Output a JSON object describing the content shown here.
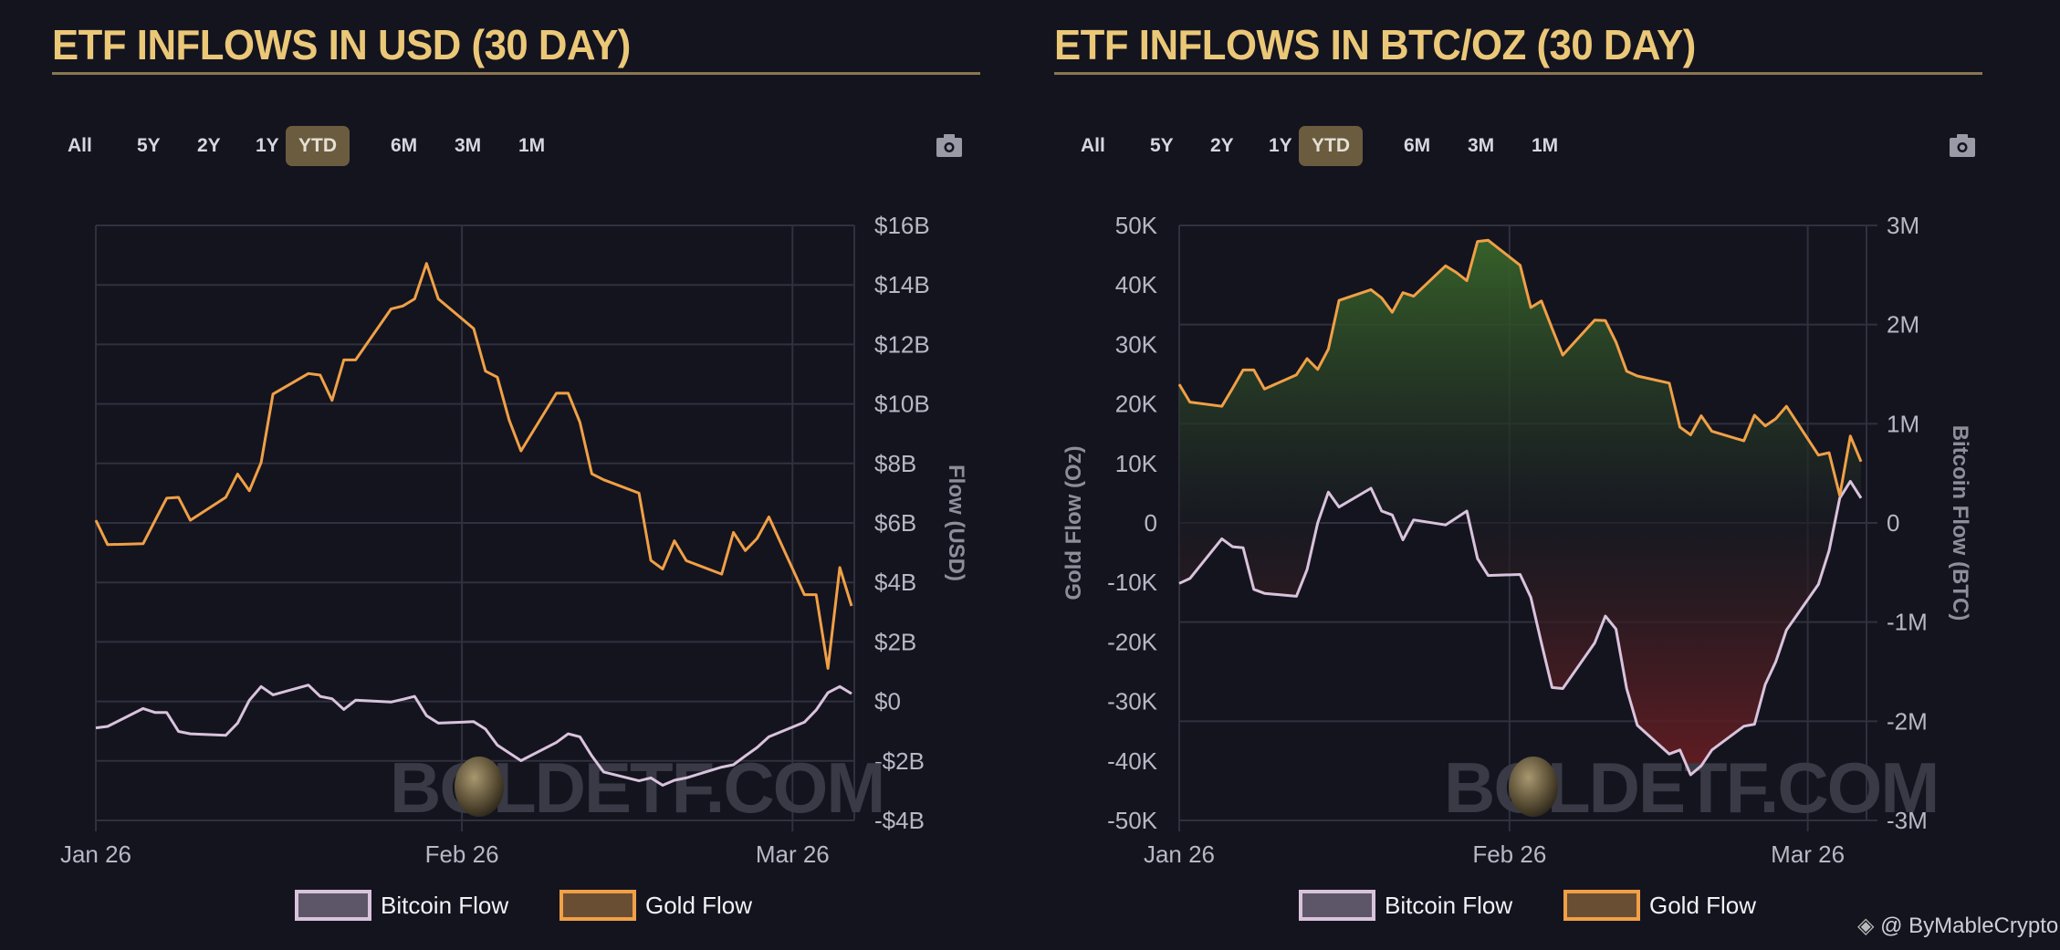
{
  "panels": [
    {
      "title": "ETF INFLOWS IN USD (30 DAY)",
      "range_buttons": [
        "All",
        "5Y",
        "2Y",
        "1Y",
        "YTD",
        "6M",
        "3M",
        "1M"
      ],
      "active_range": "YTD",
      "camera_icon": "camera-icon"
    },
    {
      "title": "ETF INFLOWS IN BTC/OZ (30 DAY)",
      "range_buttons": [
        "All",
        "5Y",
        "2Y",
        "1Y",
        "YTD",
        "6M",
        "3M",
        "1M"
      ],
      "active_range": "YTD",
      "camera_icon": "camera-icon"
    }
  ],
  "credit": {
    "icon": "binance-diamond-icon",
    "text": "@ ByMableCrypto"
  },
  "watermark": "BOLDETF.COM",
  "colors": {
    "bitcoin": "#d9c3dc",
    "gold": "#f0a046",
    "positive_fill": "#3a6a2a",
    "negative_fill": "#6a1e22"
  },
  "chart_data": [
    {
      "type": "line",
      "x": [
        "2026-01-01",
        "2026-01-02",
        "2026-01-05",
        "2026-01-06",
        "2026-01-07",
        "2026-01-08",
        "2026-01-09",
        "2026-01-12",
        "2026-01-13",
        "2026-01-14",
        "2026-01-15",
        "2026-01-16",
        "2026-01-19",
        "2026-01-20",
        "2026-01-21",
        "2026-01-22",
        "2026-01-23",
        "2026-01-26",
        "2026-01-27",
        "2026-01-28",
        "2026-01-29",
        "2026-01-30",
        "2026-02-02",
        "2026-02-03",
        "2026-02-04",
        "2026-02-05",
        "2026-02-06",
        "2026-02-09",
        "2026-02-10",
        "2026-02-11",
        "2026-02-12",
        "2026-02-13",
        "2026-02-16",
        "2026-02-17",
        "2026-02-18",
        "2026-02-19",
        "2026-02-20",
        "2026-02-23",
        "2026-02-24",
        "2026-02-25",
        "2026-02-26",
        "2026-02-27",
        "2026-03-02",
        "2026-03-03",
        "2026-03-04",
        "2026-03-05",
        "2026-03-06"
      ],
      "series": [
        {
          "name": "Bitcoin Flow",
          "unit": "USD billions",
          "values": [
            -0.89,
            -0.84,
            -0.24,
            -0.37,
            -0.37,
            -1.01,
            -1.09,
            -1.14,
            -0.73,
            0.04,
            0.5,
            0.22,
            0.55,
            0.17,
            0.09,
            -0.27,
            0.04,
            -0.02,
            0.07,
            0.17,
            -0.48,
            -0.73,
            -0.68,
            -0.93,
            -1.47,
            -1.73,
            -1.99,
            -1.38,
            -1.09,
            -1.19,
            -1.83,
            -2.37,
            -2.67,
            -2.57,
            -2.82,
            -2.65,
            -2.57,
            -2.21,
            -2.13,
            -1.83,
            -1.55,
            -1.19,
            -0.7,
            -0.29,
            0.29,
            0.5,
            0.26
          ]
        },
        {
          "name": "Gold Flow",
          "unit": "USD billions",
          "values": [
            6.09,
            5.27,
            5.3,
            6.07,
            6.83,
            6.86,
            6.09,
            6.86,
            7.64,
            7.08,
            8.03,
            10.33,
            11.02,
            10.97,
            10.12,
            11.48,
            11.48,
            13.19,
            13.29,
            13.53,
            14.72,
            13.53,
            12.53,
            11.1,
            10.9,
            9.46,
            8.42,
            10.36,
            10.36,
            9.38,
            7.65,
            7.45,
            7.0,
            4.74,
            4.45,
            5.4,
            4.73,
            4.28,
            5.68,
            5.07,
            5.48,
            6.2,
            3.59,
            3.59,
            1.11,
            4.5,
            3.21
          ]
        }
      ],
      "xticks": [
        {
          "date": "2026-01-01",
          "label": "Jan 26"
        },
        {
          "date": "2026-02-01",
          "label": "Feb 26"
        },
        {
          "date": "2026-03-01",
          "label": "Mar 26"
        }
      ],
      "xlim": [
        "2026-01-01",
        "2026-03-06"
      ],
      "ylim": [
        -4,
        16
      ],
      "yticks": [
        {
          "v": 16,
          "label": "$16B"
        },
        {
          "v": 14,
          "label": "$14B"
        },
        {
          "v": 12,
          "label": "$12B"
        },
        {
          "v": 10,
          "label": "$10B"
        },
        {
          "v": 8,
          "label": "$8B"
        },
        {
          "v": 6,
          "label": "$6B"
        },
        {
          "v": 4,
          "label": "$4B"
        },
        {
          "v": 2,
          "label": "$2B"
        },
        {
          "v": 0,
          "label": "$0"
        },
        {
          "v": -2,
          "label": "-$2B"
        },
        {
          "v": -4,
          "label": "-$4B"
        }
      ],
      "ylabel": "Flow (USD)",
      "yaxis_side": "right",
      "grid": true,
      "legend": [
        "Bitcoin Flow",
        "Gold Flow"
      ],
      "legend_position": "bottom"
    },
    {
      "type": "area",
      "x": [
        "2026-01-01",
        "2026-01-02",
        "2026-01-05",
        "2026-01-06",
        "2026-01-07",
        "2026-01-08",
        "2026-01-09",
        "2026-01-12",
        "2026-01-13",
        "2026-01-14",
        "2026-01-15",
        "2026-01-16",
        "2026-01-19",
        "2026-01-20",
        "2026-01-21",
        "2026-01-22",
        "2026-01-23",
        "2026-01-26",
        "2026-01-27",
        "2026-01-28",
        "2026-01-29",
        "2026-01-30",
        "2026-02-02",
        "2026-02-03",
        "2026-02-04",
        "2026-02-05",
        "2026-02-06",
        "2026-02-09",
        "2026-02-10",
        "2026-02-11",
        "2026-02-12",
        "2026-02-13",
        "2026-02-16",
        "2026-02-17",
        "2026-02-18",
        "2026-02-19",
        "2026-02-20",
        "2026-02-23",
        "2026-02-24",
        "2026-02-25",
        "2026-02-26",
        "2026-02-27",
        "2026-03-02",
        "2026-03-03",
        "2026-03-04",
        "2026-03-05",
        "2026-03-06"
      ],
      "series": [
        {
          "name": "Bitcoin Flow",
          "axis": "right",
          "unit": "BTC",
          "values": [
            -610000,
            -560000,
            -160000,
            -240000,
            -250000,
            -670000,
            -710000,
            -740000,
            -470000,
            0,
            310000,
            160000,
            350000,
            120000,
            80000,
            -170000,
            30000,
            -20000,
            50000,
            120000,
            -360000,
            -530000,
            -520000,
            -750000,
            -1210000,
            -1660000,
            -1670000,
            -1210000,
            -940000,
            -1070000,
            -1670000,
            -2040000,
            -2330000,
            -2290000,
            -2540000,
            -2450000,
            -2290000,
            -2050000,
            -2030000,
            -1630000,
            -1400000,
            -1080000,
            -620000,
            -280000,
            250000,
            420000,
            250000
          ]
        },
        {
          "name": "Gold Flow",
          "axis": "left",
          "unit": "Oz",
          "values": [
            23300,
            20300,
            19600,
            22600,
            25700,
            25700,
            22500,
            24900,
            27600,
            25800,
            29200,
            37400,
            39200,
            37800,
            35400,
            38700,
            38100,
            43200,
            42100,
            40700,
            47300,
            47500,
            43300,
            36200,
            37300,
            32700,
            28200,
            34100,
            34000,
            30400,
            25500,
            24700,
            23500,
            16100,
            14800,
            18000,
            15400,
            13800,
            18100,
            16300,
            17500,
            19600,
            11400,
            11800,
            4600,
            14600,
            10300
          ]
        }
      ],
      "xticks": [
        {
          "date": "2026-01-01",
          "label": "Jan 26"
        },
        {
          "date": "2026-02-01",
          "label": "Feb 26"
        },
        {
          "date": "2026-03-01",
          "label": "Mar 26"
        }
      ],
      "xlim": [
        "2026-01-01",
        "2026-03-06"
      ],
      "ylim_left": [
        -50000,
        50000
      ],
      "ylim_right": [
        -3000000,
        3000000
      ],
      "yticks_left": [
        {
          "v": 50000,
          "label": "50K"
        },
        {
          "v": 40000,
          "label": "40K"
        },
        {
          "v": 30000,
          "label": "30K"
        },
        {
          "v": 20000,
          "label": "20K"
        },
        {
          "v": 10000,
          "label": "10K"
        },
        {
          "v": 0,
          "label": "0"
        },
        {
          "v": -10000,
          "label": "-10K"
        },
        {
          "v": -20000,
          "label": "-20K"
        },
        {
          "v": -30000,
          "label": "-30K"
        },
        {
          "v": -40000,
          "label": "-40K"
        },
        {
          "v": -50000,
          "label": "-50K"
        }
      ],
      "yticks_right": [
        {
          "v": 3000000,
          "label": "3M"
        },
        {
          "v": 2000000,
          "label": "2M"
        },
        {
          "v": 1000000,
          "label": "1M"
        },
        {
          "v": 0,
          "label": "0"
        },
        {
          "v": -1000000,
          "label": "-1M"
        },
        {
          "v": -2000000,
          "label": "-2M"
        },
        {
          "v": -3000000,
          "label": "-3M"
        }
      ],
      "ylabel_left": "Gold Flow (Oz)",
      "ylabel_right": "Bitcoin Flow (BTC)",
      "fill_between": "green above zero, red below zero",
      "grid": true,
      "legend": [
        "Bitcoin Flow",
        "Gold Flow"
      ],
      "legend_position": "bottom"
    }
  ]
}
